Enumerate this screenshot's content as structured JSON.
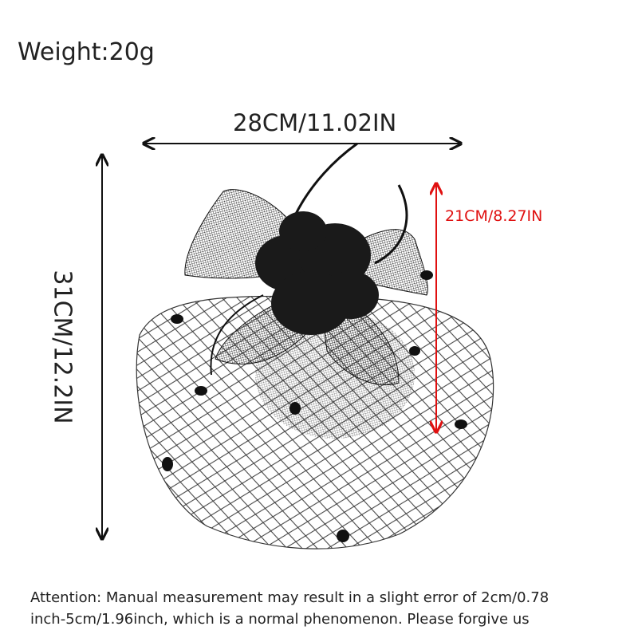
{
  "weight": "Weight:20g",
  "dimensions": {
    "width": "28CM/11.02IN",
    "height": "31CM/12.2IN",
    "depth": "21CM/8.27IN"
  },
  "note": {
    "lines": [
      "Attention: Manual measurement may result in a slight error of 2cm/0.78",
      "inch-5cm/1.96inch, which is a normal phenomenon. Please forgive us"
    ]
  }
}
